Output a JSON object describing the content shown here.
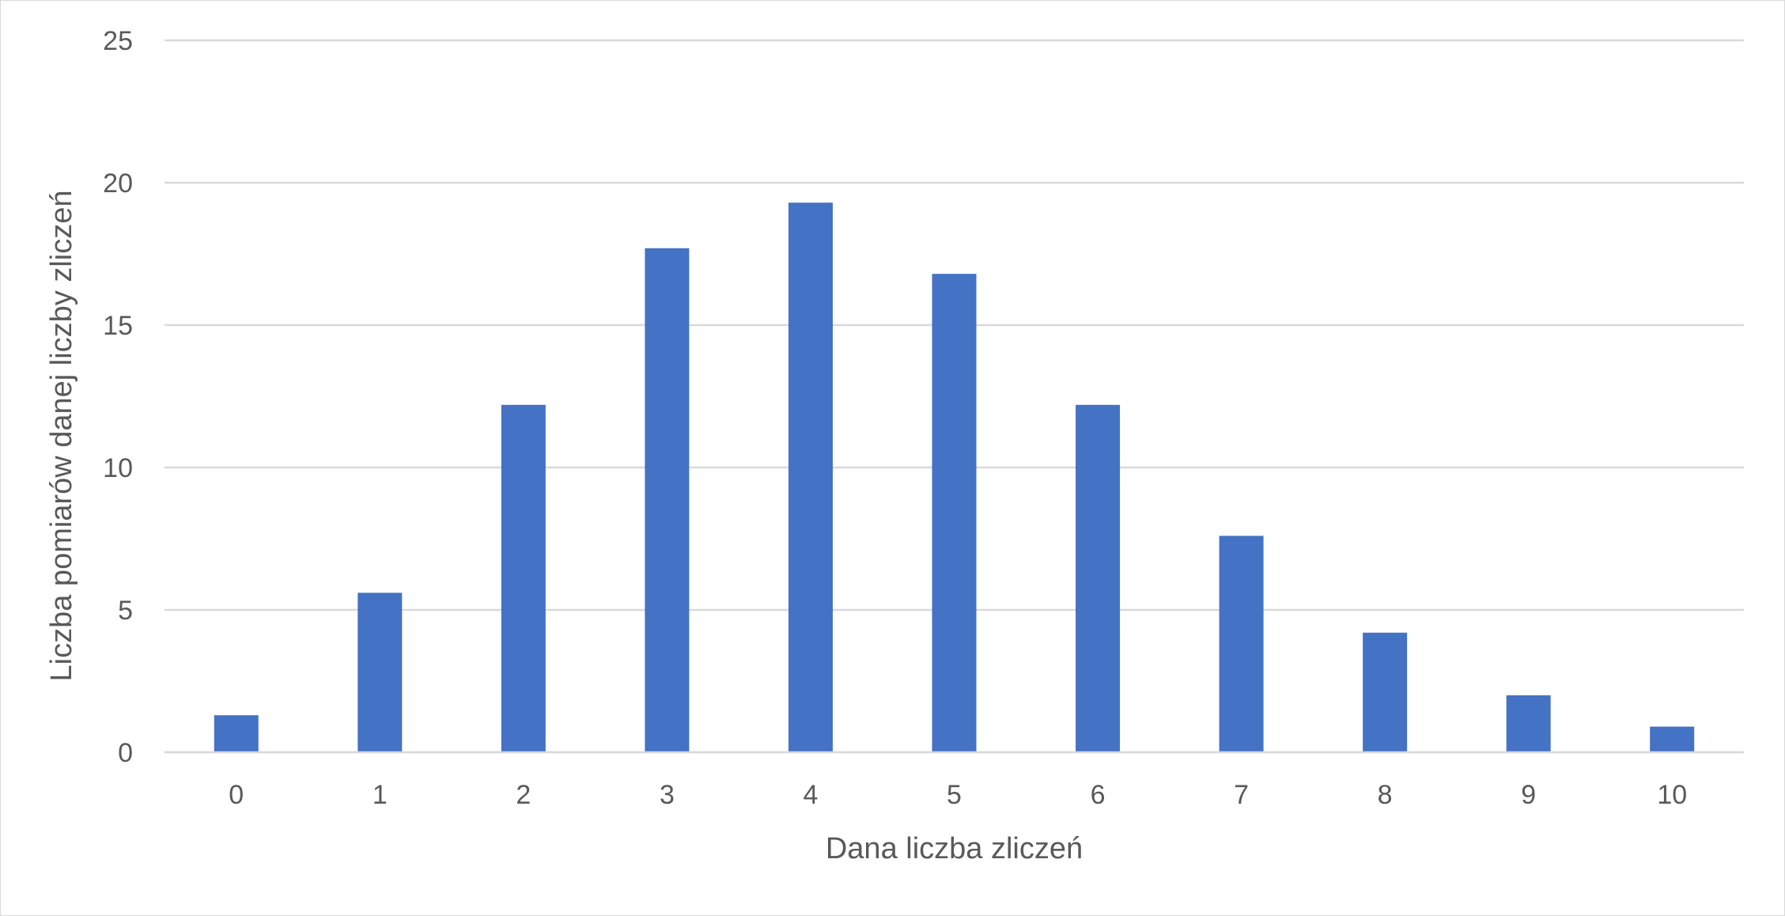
{
  "chart_data": {
    "type": "bar",
    "title": "",
    "xlabel": "Dana liczba zliczeń",
    "ylabel": "Liczba pomiarów danej liczby zliczeń",
    "categories": [
      "0",
      "1",
      "2",
      "3",
      "4",
      "5",
      "6",
      "7",
      "8",
      "9",
      "10"
    ],
    "values": [
      1.3,
      5.6,
      12.2,
      17.7,
      19.3,
      16.8,
      12.2,
      7.6,
      4.2,
      2.0,
      0.9
    ],
    "ylim": [
      0,
      25
    ],
    "yticks": [
      "0",
      "5",
      "10",
      "15",
      "20",
      "25"
    ],
    "grid": true,
    "legend": "none",
    "colors": {
      "bar": "#4472C4",
      "grid": "#d9d9d9",
      "text": "#595959"
    }
  }
}
